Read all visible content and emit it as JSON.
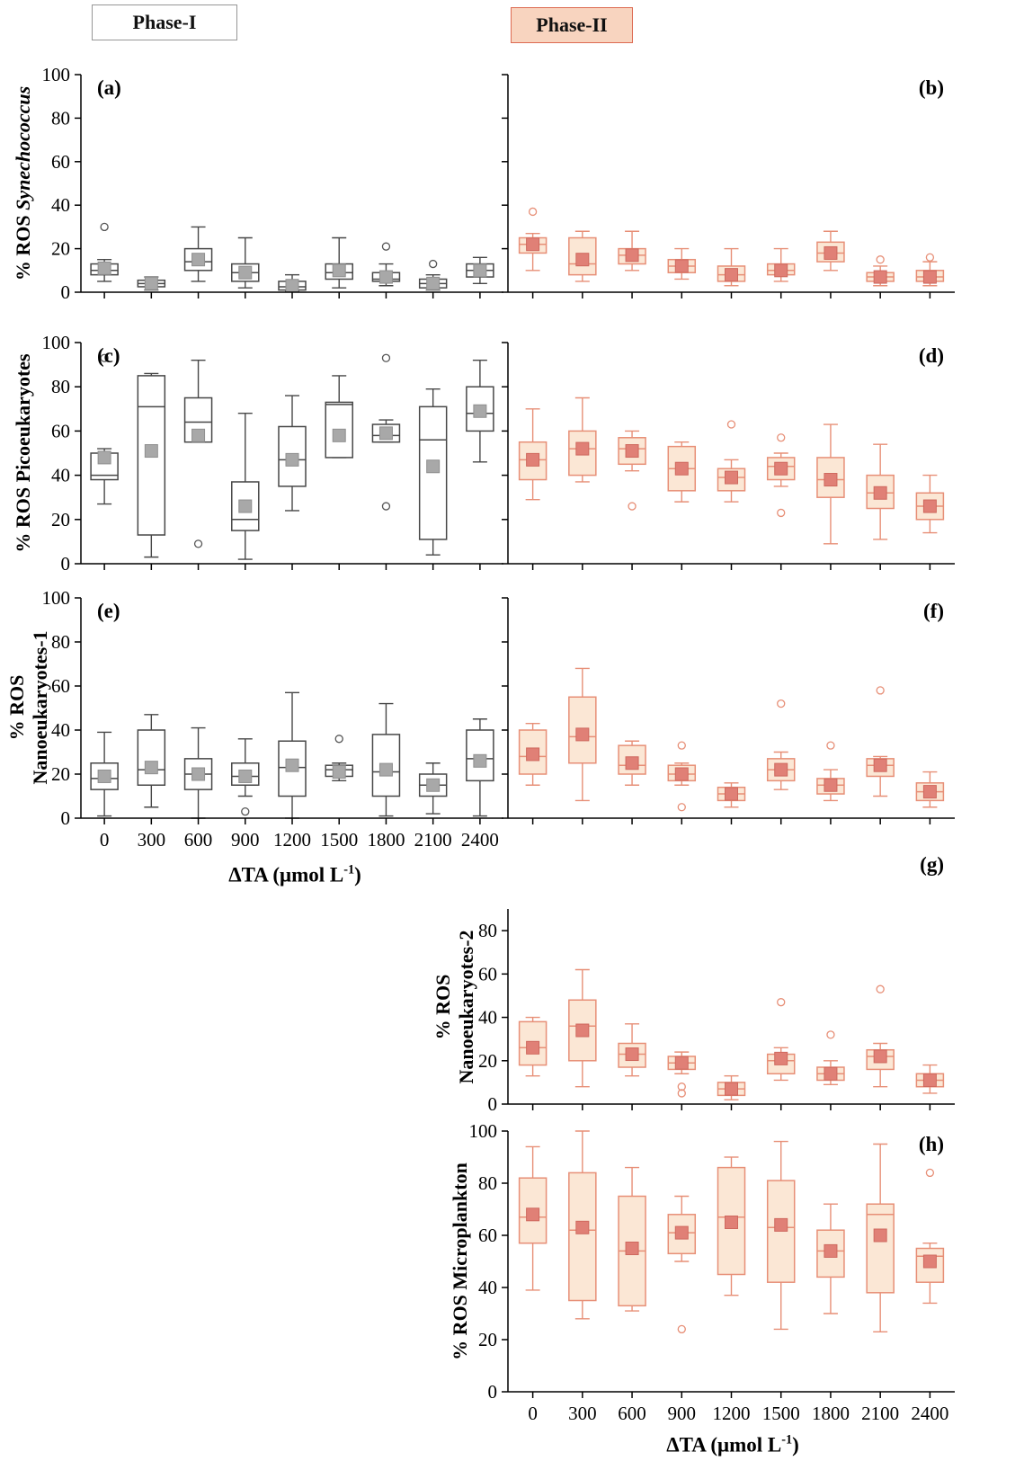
{
  "legend": {
    "phase1": {
      "label": "Phase-I"
    },
    "phase2": {
      "label": "Phase-II"
    }
  },
  "styles": {
    "phase1": {
      "box_fill": "#ffffff",
      "stroke": "#474747",
      "mean_fill": "#a8a8a8",
      "mean_stroke": "#8f8f8f",
      "outlier": "#555555"
    },
    "phase2": {
      "box_fill": "#fbe7d5",
      "stroke": "#e78f77",
      "mean_fill": "#e08076",
      "mean_stroke": "#cf685e",
      "outlier": "#e78f77"
    }
  },
  "y_labels": [
    {
      "normal": "% ROS ",
      "italic": "Synechococcus"
    },
    {
      "text": "% ROS Picoeukaryotes"
    },
    {
      "line1": "% ROS",
      "line2": "Nanoeukaryotes-1"
    },
    {
      "line1": "% ROS",
      "line2": "Nanoeukaryotes-2"
    },
    {
      "text": "% ROS Microplankton"
    }
  ],
  "x_axis": {
    "label_prefix": "ΔTA (μmol L",
    "label_sup": "-1",
    "label_suffix": ")"
  },
  "chart_data": {
    "type": "box",
    "categories": [
      "0",
      "300",
      "600",
      "900",
      "1200",
      "1500",
      "1800",
      "2100",
      "2400"
    ],
    "x_label": "ΔTA (μmol L⁻¹)",
    "box_keys": [
      "low",
      "q1",
      "median",
      "q3",
      "high",
      "mean",
      "outliers"
    ],
    "panels": [
      {
        "id": "a",
        "letter": "(a)",
        "phase": "phase1",
        "phase_name": "Phase-I",
        "measure": "% ROS Synechococcus",
        "ymax": 100,
        "yticks": [
          0,
          20,
          40,
          60,
          80,
          100
        ],
        "show_ytick_labels": true,
        "show_xtick_labels": false,
        "boxes": [
          [
            5,
            8,
            10,
            13,
            15,
            11,
            [
              30
            ]
          ],
          [
            1,
            2.5,
            4,
            5.5,
            7,
            4,
            []
          ],
          [
            5,
            10,
            14,
            20,
            30,
            15,
            []
          ],
          [
            2,
            5,
            9,
            13,
            25,
            9,
            []
          ],
          [
            0.5,
            1,
            2.5,
            5,
            8,
            3,
            []
          ],
          [
            2,
            6,
            9,
            13,
            25,
            10,
            []
          ],
          [
            3,
            5,
            6,
            9,
            13,
            7,
            [
              21
            ]
          ],
          [
            1,
            2,
            4,
            6,
            8,
            4,
            [
              13
            ]
          ],
          [
            4,
            7,
            10,
            13,
            16,
            10,
            []
          ]
        ]
      },
      {
        "id": "b",
        "letter": "(b)",
        "phase": "phase2",
        "phase_name": "Phase-II",
        "measure": "% ROS Synechococcus",
        "ymax": 100,
        "yticks": [
          0,
          20,
          40,
          60,
          80,
          100
        ],
        "show_ytick_labels": false,
        "show_xtick_labels": false,
        "boxes": [
          [
            10,
            18,
            22,
            25,
            27,
            22,
            [
              37
            ]
          ],
          [
            5,
            8,
            13,
            25,
            28,
            15,
            []
          ],
          [
            10,
            13,
            17,
            20,
            28,
            17,
            []
          ],
          [
            6,
            9,
            12,
            15,
            20,
            12,
            []
          ],
          [
            3,
            5,
            8,
            12,
            20,
            8,
            []
          ],
          [
            5,
            8,
            10,
            13,
            20,
            10,
            []
          ],
          [
            10,
            14,
            18,
            23,
            28,
            18,
            []
          ],
          [
            3,
            5,
            7,
            9,
            12,
            7,
            [
              15
            ]
          ],
          [
            3,
            5,
            7,
            10,
            14,
            7,
            [
              16
            ]
          ]
        ]
      },
      {
        "id": "c",
        "letter": "(c)",
        "phase": "phase1",
        "phase_name": "Phase-I",
        "measure": "% ROS Picoeukaryotes",
        "ymax": 100,
        "yticks": [
          0,
          20,
          40,
          60,
          80,
          100
        ],
        "show_ytick_labels": true,
        "show_xtick_labels": false,
        "boxes": [
          [
            27,
            38,
            40,
            50,
            52,
            48,
            [
              93
            ]
          ],
          [
            3,
            13,
            71,
            85,
            86,
            51,
            []
          ],
          [
            55,
            55,
            64,
            75,
            92,
            58,
            [
              9
            ]
          ],
          [
            2,
            15,
            20,
            37,
            68,
            26,
            []
          ],
          [
            24,
            35,
            47,
            62,
            76,
            47,
            []
          ],
          [
            48,
            48,
            72,
            73,
            85,
            58,
            []
          ],
          [
            55,
            55,
            58,
            63,
            65,
            59,
            [
              93,
              26
            ]
          ],
          [
            4,
            11,
            56,
            71,
            79,
            44,
            []
          ],
          [
            46,
            60,
            68,
            80,
            92,
            69,
            []
          ]
        ]
      },
      {
        "id": "d",
        "letter": "(d)",
        "phase": "phase2",
        "phase_name": "Phase-II",
        "measure": "% ROS Picoeukaryotes",
        "ymax": 100,
        "yticks": [
          0,
          20,
          40,
          60,
          80,
          100
        ],
        "show_ytick_labels": false,
        "show_xtick_labels": false,
        "boxes": [
          [
            29,
            38,
            47,
            55,
            70,
            47,
            []
          ],
          [
            37,
            40,
            52,
            60,
            75,
            52,
            []
          ],
          [
            42,
            45,
            52,
            57,
            60,
            51,
            [
              26
            ]
          ],
          [
            28,
            33,
            43,
            53,
            55,
            43,
            []
          ],
          [
            28,
            33,
            39,
            43,
            47,
            39,
            [
              63
            ]
          ],
          [
            35,
            38,
            44,
            48,
            50,
            43,
            [
              57,
              23
            ]
          ],
          [
            9,
            30,
            38,
            48,
            63,
            38,
            []
          ],
          [
            11,
            25,
            32,
            40,
            54,
            32,
            []
          ],
          [
            14,
            20,
            26,
            32,
            40,
            26,
            []
          ]
        ]
      },
      {
        "id": "e",
        "letter": "(e)",
        "phase": "phase1",
        "phase_name": "Phase-I",
        "measure": "% ROS Nanoeukaryotes-1",
        "ymax": 100,
        "yticks": [
          0,
          20,
          40,
          60,
          80,
          100
        ],
        "show_ytick_labels": true,
        "show_xtick_labels": true,
        "boxes": [
          [
            1,
            13,
            18,
            25,
            39,
            19,
            []
          ],
          [
            5,
            15,
            22,
            40,
            47,
            23,
            []
          ],
          [
            0,
            13,
            20,
            27,
            41,
            20,
            []
          ],
          [
            10,
            15,
            19,
            25,
            36,
            19,
            [
              3
            ]
          ],
          [
            0,
            10,
            23,
            35,
            57,
            24,
            []
          ],
          [
            17,
            19,
            22,
            24,
            25,
            21,
            [
              36
            ]
          ],
          [
            1,
            10,
            21,
            38,
            52,
            22,
            []
          ],
          [
            2,
            10,
            15,
            20,
            25,
            15,
            []
          ],
          [
            1,
            17,
            27,
            40,
            45,
            26,
            []
          ]
        ]
      },
      {
        "id": "f",
        "letter": "(f)",
        "phase": "phase2",
        "phase_name": "Phase-II",
        "measure": "% ROS Nanoeukaryotes-1",
        "ymax": 100,
        "yticks": [
          0,
          20,
          40,
          60,
          80,
          100
        ],
        "show_ytick_labels": false,
        "show_xtick_labels": false,
        "boxes": [
          [
            15,
            20,
            28,
            40,
            43,
            29,
            []
          ],
          [
            8,
            25,
            37,
            55,
            68,
            38,
            []
          ],
          [
            15,
            20,
            24,
            33,
            35,
            25,
            []
          ],
          [
            15,
            17,
            20,
            24,
            25,
            20,
            [
              33,
              5
            ]
          ],
          [
            5,
            8,
            11,
            14,
            16,
            11,
            []
          ],
          [
            13,
            17,
            22,
            27,
            30,
            22,
            [
              52
            ]
          ],
          [
            8,
            11,
            15,
            18,
            22,
            15,
            [
              33
            ]
          ],
          [
            10,
            19,
            24,
            27,
            28,
            24,
            [
              58
            ]
          ],
          [
            5,
            8,
            12,
            16,
            21,
            12,
            []
          ]
        ]
      },
      {
        "id": "g",
        "letter": "(g)",
        "phase": "phase2",
        "phase_name": "Phase-II",
        "measure": "% ROS Nanoeukaryotes-2",
        "ymax": 90,
        "yticks": [
          0,
          20,
          40,
          60,
          80
        ],
        "show_ytick_labels": true,
        "show_xtick_labels": false,
        "boxes": [
          [
            13,
            18,
            26,
            38,
            40,
            26,
            []
          ],
          [
            8,
            20,
            36,
            48,
            62,
            34,
            []
          ],
          [
            13,
            17,
            23,
            28,
            37,
            23,
            []
          ],
          [
            14,
            16,
            19,
            22,
            24,
            19,
            [
              8,
              5
            ]
          ],
          [
            2,
            4,
            7,
            10,
            13,
            7,
            []
          ],
          [
            11,
            14,
            20,
            23,
            26,
            21,
            [
              47
            ]
          ],
          [
            9,
            11,
            14,
            17,
            20,
            14,
            [
              32
            ]
          ],
          [
            8,
            16,
            22,
            25,
            28,
            22,
            [
              53
            ]
          ],
          [
            5,
            8,
            11,
            14,
            18,
            11,
            []
          ]
        ]
      },
      {
        "id": "h",
        "letter": "(h)",
        "phase": "phase2",
        "phase_name": "Phase-II",
        "measure": "% ROS Microplankton",
        "ymax": 100,
        "yticks": [
          0,
          20,
          40,
          60,
          80,
          100
        ],
        "show_ytick_labels": true,
        "show_xtick_labels": true,
        "boxes": [
          [
            39,
            57,
            67,
            82,
            94,
            68,
            []
          ],
          [
            28,
            35,
            62,
            84,
            100,
            63,
            []
          ],
          [
            31,
            33,
            54,
            75,
            86,
            55,
            []
          ],
          [
            50,
            53,
            61,
            68,
            75,
            61,
            [
              24
            ]
          ],
          [
            37,
            45,
            67,
            86,
            90,
            65,
            []
          ],
          [
            24,
            42,
            63,
            81,
            96,
            64,
            []
          ],
          [
            30,
            44,
            54,
            62,
            72,
            54,
            []
          ],
          [
            23,
            38,
            68,
            72,
            95,
            60,
            []
          ],
          [
            34,
            42,
            52,
            55,
            57,
            50,
            [
              84
            ]
          ]
        ]
      }
    ]
  }
}
